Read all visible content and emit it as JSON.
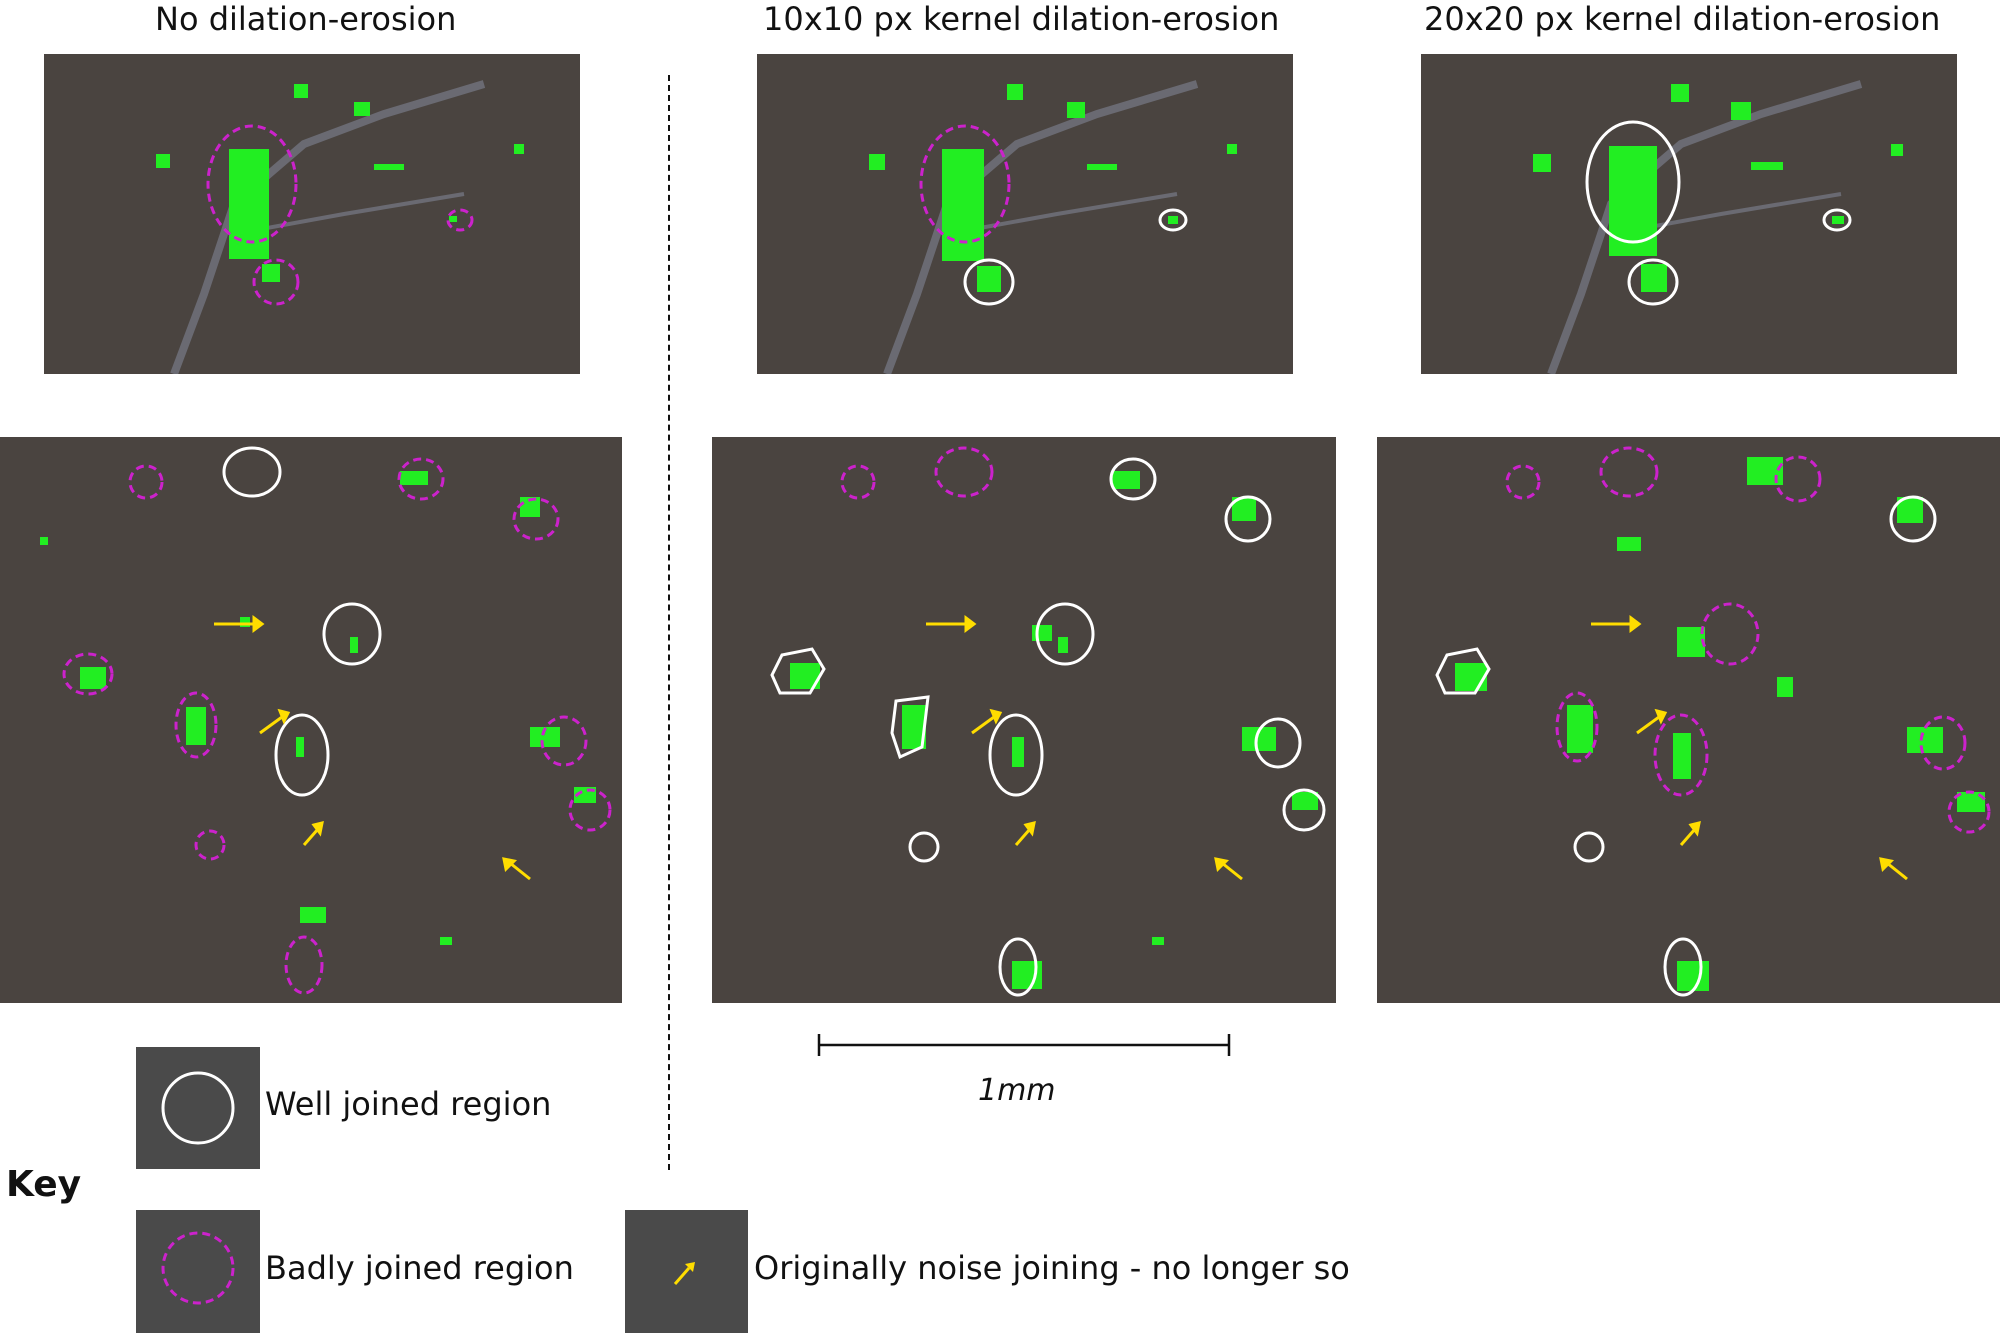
{
  "titles": {
    "col1": "No dilation-erosion",
    "col2": "10x10 px kernel dilation-erosion",
    "col3": "20x20 px kernel dilation-erosion"
  },
  "scale_bar": {
    "label": "1mm"
  },
  "key": {
    "title": "Key",
    "well": "Well joined region",
    "bad": "Badly joined region",
    "noise": "Originally noise joining - no longer so"
  },
  "colors": {
    "background": "#4a4440",
    "segmented": "#22ee22",
    "well_joined": "#ffffff",
    "badly_joined": "#cc22cc",
    "noise_arrow": "#ffdd00",
    "key_box": "#4a4a4a"
  }
}
